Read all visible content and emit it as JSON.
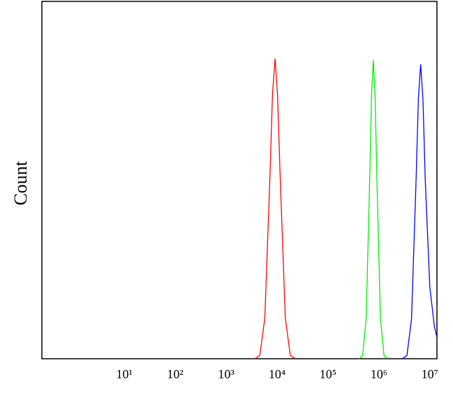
{
  "chart_data": {
    "type": "line",
    "y_label": "Count",
    "xscale": "log",
    "xlim": [
      0.24,
      13800000
    ],
    "ylim": [
      0,
      100
    ],
    "xticks": [
      {
        "value": 10,
        "label": "10¹"
      },
      {
        "value": 100,
        "label": "10²"
      },
      {
        "value": 1000,
        "label": "10³"
      },
      {
        "value": 10000,
        "label": "10⁴"
      },
      {
        "value": 100000,
        "label": "10⁵"
      },
      {
        "value": 1000000,
        "label": "10⁶"
      },
      {
        "value": 10000000,
        "label": "10⁷"
      }
    ],
    "series": [
      {
        "color": "#ff0000",
        "x": [
          3630,
          4570,
          5750,
          7240,
          8130,
          9120,
          10200,
          11500,
          14500,
          18200,
          22900
        ],
        "values": [
          0,
          0.9,
          11.4,
          51,
          74,
          84,
          74,
          51,
          11.4,
          0.9,
          0
        ]
      },
      {
        "color": "#00ee00",
        "x": [
          407000,
          479000,
          562000,
          661000,
          716000,
          776000,
          841000,
          912000,
          1070000,
          1260000,
          1480000
        ],
        "values": [
          0,
          0.9,
          11.3,
          50.7,
          73.7,
          83.6,
          73.7,
          50.7,
          11.3,
          0.9,
          0
        ]
      },
      {
        "color": "#0000ff",
        "x": [
          2880000,
          3550000,
          4370000,
          5370000,
          5960000,
          6610000,
          7330000,
          8130000,
          10000000,
          12300000,
          13800000
        ],
        "values": [
          0,
          0.9,
          11.1,
          50,
          72.7,
          82.4,
          72.7,
          50,
          20,
          9,
          6
        ]
      }
    ]
  }
}
